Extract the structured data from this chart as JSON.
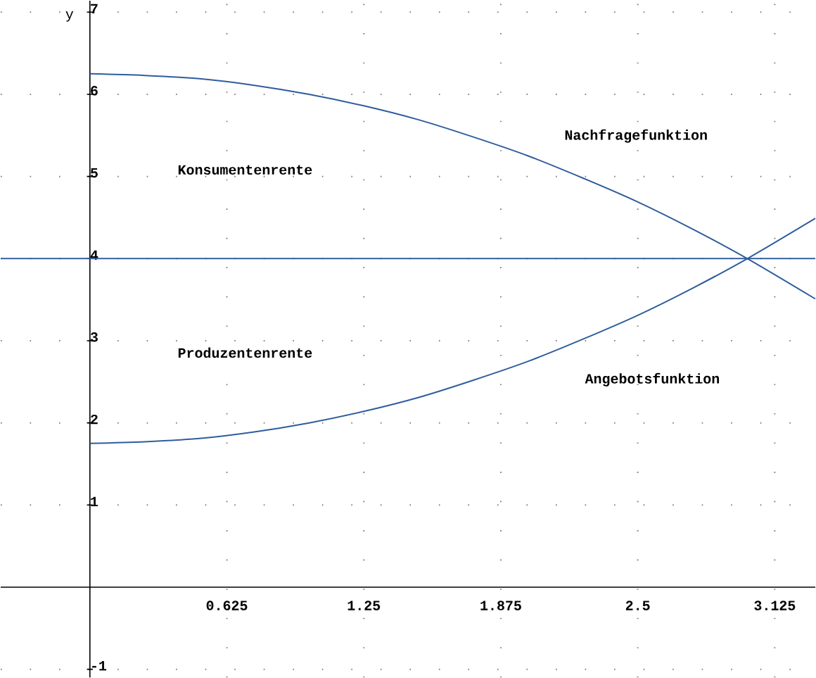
{
  "chart_data": {
    "type": "line",
    "ylabel": "y",
    "x": [
      0,
      0.25,
      0.5,
      0.75,
      1,
      1.25,
      1.5,
      1.75,
      2,
      2.25,
      2.5,
      2.75,
      3,
      3.31
    ],
    "series": [
      {
        "color": "#2f5d9e",
        "values": [
          6.25,
          6.23,
          6.19,
          6.11,
          6.0,
          5.86,
          5.69,
          5.48,
          5.25,
          4.98,
          4.69,
          4.36,
          4.0,
          3.51
        ]
      },
      {
        "color": "#2f5d9e",
        "values": [
          1.75,
          1.77,
          1.81,
          1.89,
          2.0,
          2.14,
          2.31,
          2.52,
          2.75,
          3.02,
          3.31,
          3.64,
          4.0,
          4.49
        ]
      }
    ],
    "ref_lines": [
      {
        "axis": "y",
        "value": 4,
        "color": "#2f5d9e"
      }
    ],
    "xlim": [
      -0.407,
      3.31
    ],
    "ylim": [
      -1.1,
      7.14
    ],
    "xticks": [
      0.625,
      1.25,
      1.875,
      2.5,
      3.125
    ],
    "yticks": [
      -1,
      1,
      2,
      3,
      4,
      5,
      6,
      7
    ],
    "grid": true,
    "annotations": [
      "Konsumentenrente",
      "Produzentenrente",
      "Nachfragefunktion",
      "Angebotsfunktion"
    ]
  }
}
